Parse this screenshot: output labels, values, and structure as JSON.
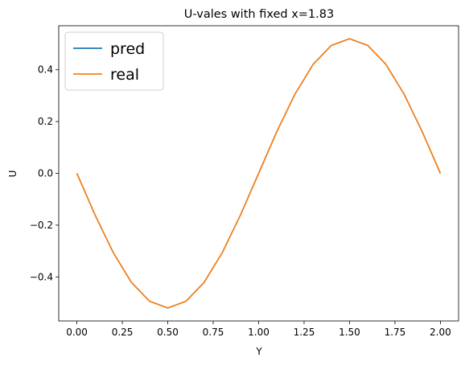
{
  "chart_data": {
    "type": "line",
    "title": "U-vales with fixed x=1.83",
    "xlabel": "Y",
    "ylabel": "U",
    "xlim": [
      -0.1,
      2.1
    ],
    "ylim": [
      -0.57,
      0.57
    ],
    "xticks": [
      0.0,
      0.25,
      0.5,
      0.75,
      1.0,
      1.25,
      1.5,
      1.75,
      2.0
    ],
    "xtick_labels": [
      "0.00",
      "0.25",
      "0.50",
      "0.75",
      "1.00",
      "1.25",
      "1.50",
      "1.75",
      "2.00"
    ],
    "yticks": [
      -0.4,
      -0.2,
      0.0,
      0.2,
      0.4
    ],
    "ytick_labels": [
      "−0.4",
      "−0.2",
      "0.0",
      "0.2",
      "0.4"
    ],
    "grid": false,
    "legend_position": "top-left",
    "series": [
      {
        "name": "pred",
        "color": "#1f77b4",
        "x": [
          0.0,
          0.1,
          0.2,
          0.3,
          0.4,
          0.5,
          0.6,
          0.7,
          0.8,
          0.9,
          1.0,
          1.1,
          1.2,
          1.3,
          1.4,
          1.5,
          1.6,
          1.7,
          1.8,
          1.9,
          2.0
        ],
        "y": [
          0.0,
          -0.161,
          -0.306,
          -0.421,
          -0.494,
          -0.52,
          -0.494,
          -0.421,
          -0.306,
          -0.161,
          0.0,
          0.161,
          0.306,
          0.421,
          0.494,
          0.52,
          0.494,
          0.421,
          0.306,
          0.161,
          0.0
        ]
      },
      {
        "name": "real",
        "color": "#ff7f0e",
        "x": [
          0.0,
          0.1,
          0.2,
          0.3,
          0.4,
          0.5,
          0.6,
          0.7,
          0.8,
          0.9,
          1.0,
          1.1,
          1.2,
          1.3,
          1.4,
          1.5,
          1.6,
          1.7,
          1.8,
          1.9,
          2.0
        ],
        "y": [
          0.0,
          -0.161,
          -0.306,
          -0.421,
          -0.494,
          -0.52,
          -0.494,
          -0.421,
          -0.306,
          -0.161,
          0.0,
          0.161,
          0.306,
          0.421,
          0.494,
          0.52,
          0.494,
          0.421,
          0.306,
          0.161,
          0.0
        ]
      }
    ]
  }
}
